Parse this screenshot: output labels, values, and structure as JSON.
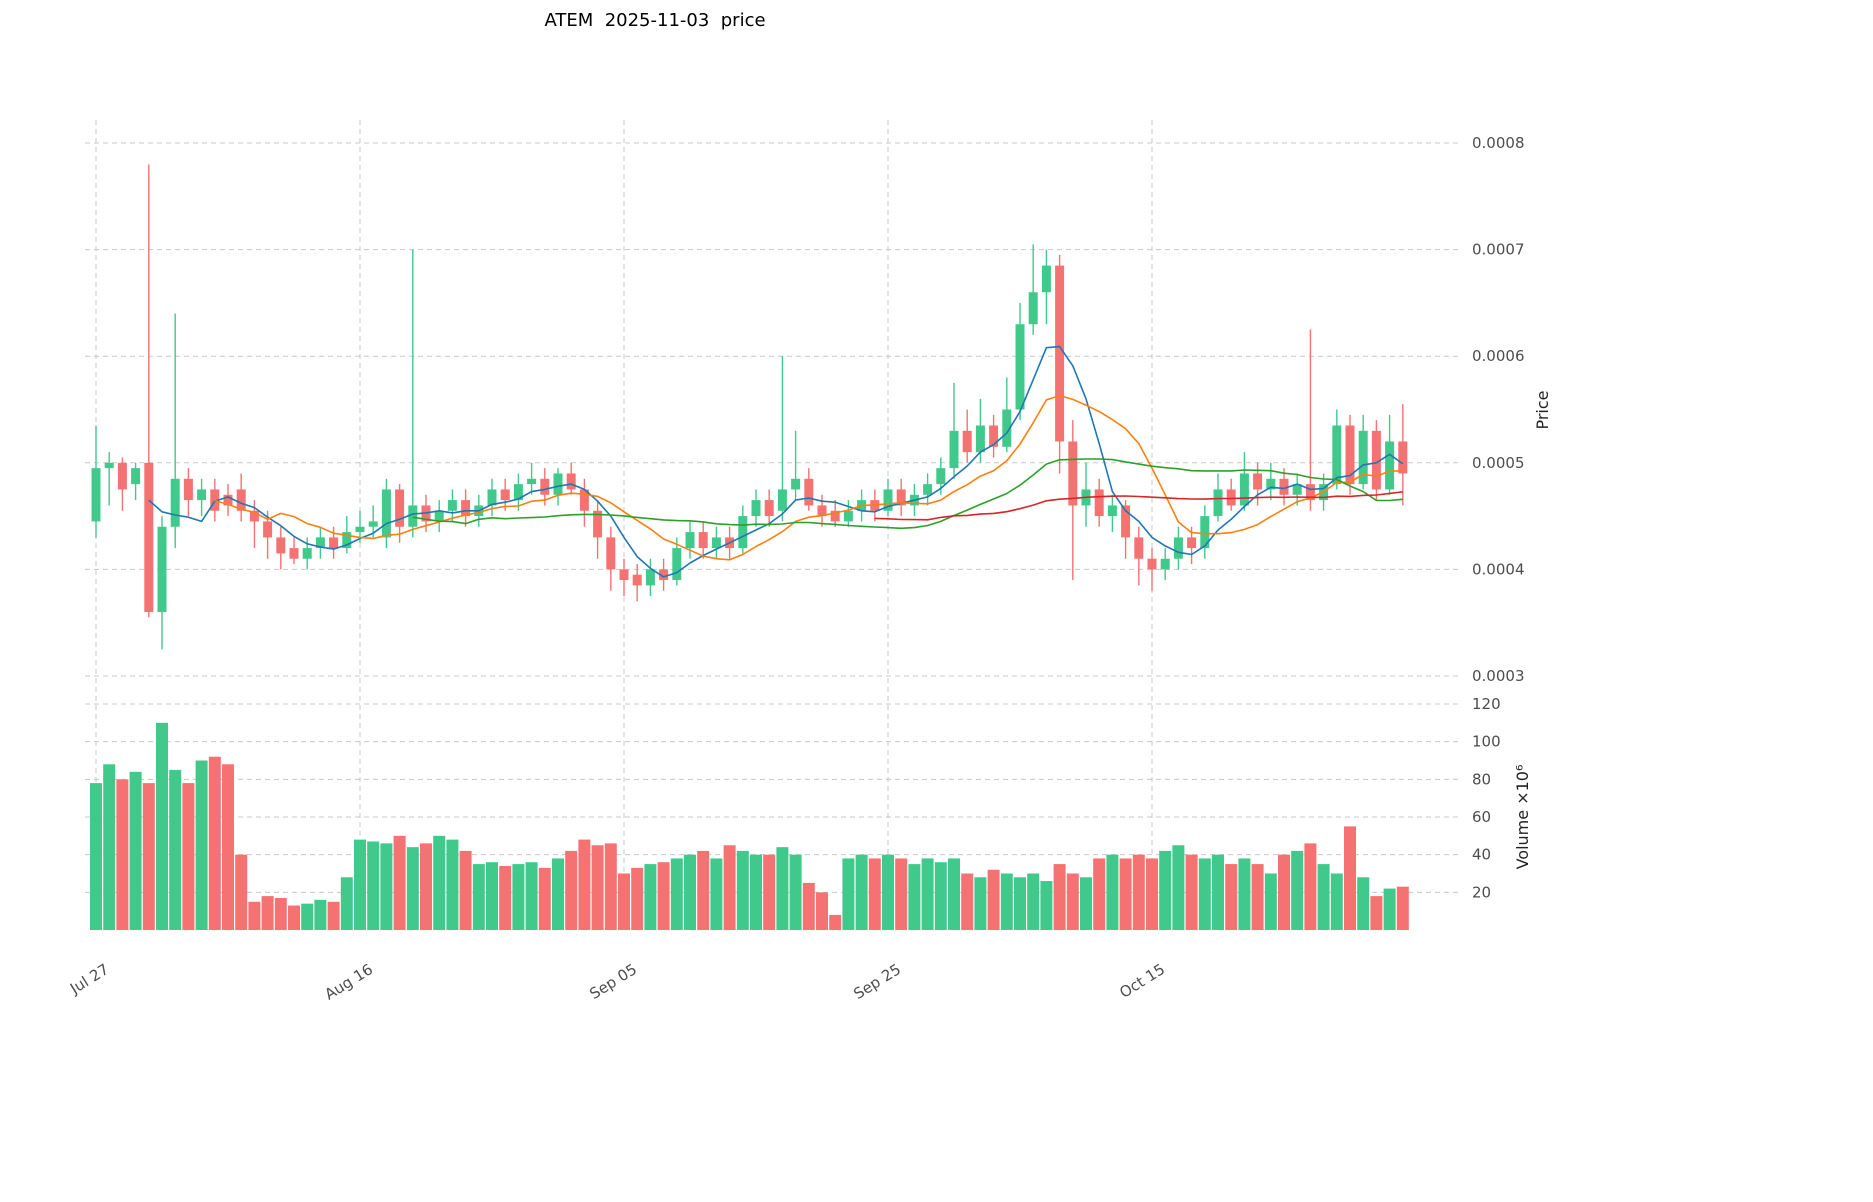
{
  "title": "ATEM  2025-11-03  price",
  "chart_data": {
    "type": "candlestick",
    "symbol": "ATEM",
    "as_of_date": "2025-11-03",
    "start_date": "2025-07-27",
    "end_date": "2025-11-03",
    "price_multiplier": 0.0001,
    "volume_multiplier": 1000000,
    "columns": [
      "open",
      "high",
      "low",
      "close",
      "volume"
    ],
    "ohlcv": [
      [
        4.45,
        5.35,
        4.3,
        4.95,
        78
      ],
      [
        4.95,
        5.1,
        4.6,
        5.0,
        88
      ],
      [
        5.0,
        5.05,
        4.55,
        4.75,
        80
      ],
      [
        4.8,
        5.0,
        4.65,
        4.95,
        84
      ],
      [
        5.0,
        7.8,
        3.55,
        3.6,
        78
      ],
      [
        3.6,
        4.5,
        3.25,
        4.4,
        110
      ],
      [
        4.4,
        6.4,
        4.2,
        4.85,
        85
      ],
      [
        4.85,
        4.95,
        4.5,
        4.65,
        78
      ],
      [
        4.65,
        4.85,
        4.5,
        4.75,
        90
      ],
      [
        4.75,
        4.85,
        4.45,
        4.55,
        92
      ],
      [
        4.7,
        4.8,
        4.5,
        4.6,
        88
      ],
      [
        4.75,
        4.9,
        4.45,
        4.55,
        40
      ],
      [
        4.55,
        4.65,
        4.2,
        4.45,
        15
      ],
      [
        4.45,
        4.55,
        4.1,
        4.3,
        18
      ],
      [
        4.3,
        4.4,
        4.0,
        4.15,
        17
      ],
      [
        4.2,
        4.3,
        4.05,
        4.1,
        13
      ],
      [
        4.1,
        4.3,
        4.0,
        4.2,
        14
      ],
      [
        4.2,
        4.4,
        4.1,
        4.3,
        16
      ],
      [
        4.3,
        4.4,
        4.1,
        4.2,
        15
      ],
      [
        4.2,
        4.5,
        4.15,
        4.35,
        28
      ],
      [
        4.35,
        4.55,
        4.25,
        4.4,
        48
      ],
      [
        4.4,
        4.6,
        4.3,
        4.45,
        47
      ],
      [
        4.3,
        4.85,
        4.2,
        4.75,
        46
      ],
      [
        4.75,
        4.8,
        4.25,
        4.4,
        50
      ],
      [
        4.4,
        7.0,
        4.3,
        4.6,
        44
      ],
      [
        4.6,
        4.7,
        4.35,
        4.45,
        46
      ],
      [
        4.45,
        4.65,
        4.35,
        4.55,
        50
      ],
      [
        4.55,
        4.75,
        4.45,
        4.65,
        48
      ],
      [
        4.65,
        4.75,
        4.4,
        4.5,
        42
      ],
      [
        4.5,
        4.7,
        4.4,
        4.6,
        35
      ],
      [
        4.6,
        4.85,
        4.5,
        4.75,
        36
      ],
      [
        4.75,
        4.85,
        4.55,
        4.65,
        34
      ],
      [
        4.65,
        4.9,
        4.55,
        4.8,
        35
      ],
      [
        4.8,
        5.0,
        4.7,
        4.85,
        36
      ],
      [
        4.85,
        4.95,
        4.6,
        4.7,
        33
      ],
      [
        4.7,
        4.95,
        4.6,
        4.9,
        38
      ],
      [
        4.9,
        5.0,
        4.7,
        4.75,
        42
      ],
      [
        4.75,
        4.85,
        4.4,
        4.55,
        48
      ],
      [
        4.55,
        4.65,
        4.1,
        4.3,
        45
      ],
      [
        4.3,
        4.4,
        3.8,
        4.0,
        46
      ],
      [
        4.0,
        4.1,
        3.75,
        3.9,
        30
      ],
      [
        3.95,
        4.05,
        3.7,
        3.85,
        33
      ],
      [
        3.85,
        4.1,
        3.75,
        4.0,
        35
      ],
      [
        4.0,
        4.1,
        3.8,
        3.9,
        36
      ],
      [
        3.9,
        4.3,
        3.85,
        4.2,
        38
      ],
      [
        4.2,
        4.45,
        4.1,
        4.35,
        40
      ],
      [
        4.35,
        4.45,
        4.1,
        4.2,
        42
      ],
      [
        4.2,
        4.4,
        4.1,
        4.3,
        38
      ],
      [
        4.3,
        4.4,
        4.1,
        4.2,
        45
      ],
      [
        4.2,
        4.6,
        4.15,
        4.5,
        42
      ],
      [
        4.5,
        4.75,
        4.4,
        4.65,
        40
      ],
      [
        4.65,
        4.75,
        4.4,
        4.5,
        40
      ],
      [
        4.55,
        6.0,
        4.45,
        4.75,
        44
      ],
      [
        4.75,
        5.3,
        4.65,
        4.85,
        40
      ],
      [
        4.85,
        4.95,
        4.55,
        4.6,
        25
      ],
      [
        4.6,
        4.7,
        4.4,
        4.5,
        20
      ],
      [
        4.55,
        4.65,
        4.4,
        4.45,
        8
      ],
      [
        4.45,
        4.65,
        4.4,
        4.55,
        38
      ],
      [
        4.55,
        4.75,
        4.45,
        4.65,
        40
      ],
      [
        4.65,
        4.75,
        4.45,
        4.55,
        38
      ],
      [
        4.55,
        4.85,
        4.5,
        4.75,
        40
      ],
      [
        4.75,
        4.85,
        4.5,
        4.6,
        38
      ],
      [
        4.6,
        4.8,
        4.5,
        4.7,
        35
      ],
      [
        4.7,
        4.9,
        4.6,
        4.8,
        38
      ],
      [
        4.8,
        5.05,
        4.7,
        4.95,
        36
      ],
      [
        4.95,
        5.75,
        4.85,
        5.3,
        38
      ],
      [
        5.3,
        5.5,
        5.0,
        5.1,
        30
      ],
      [
        5.1,
        5.6,
        5.0,
        5.35,
        28
      ],
      [
        5.35,
        5.45,
        5.05,
        5.15,
        32
      ],
      [
        5.15,
        5.8,
        5.1,
        5.5,
        30
      ],
      [
        5.5,
        6.5,
        5.4,
        6.3,
        28
      ],
      [
        6.3,
        7.05,
        6.2,
        6.6,
        30
      ],
      [
        6.6,
        7.0,
        6.3,
        6.85,
        26
      ],
      [
        6.85,
        6.95,
        4.9,
        5.2,
        35
      ],
      [
        5.2,
        5.4,
        3.9,
        4.6,
        30
      ],
      [
        4.6,
        5.0,
        4.4,
        4.75,
        28
      ],
      [
        4.75,
        4.85,
        4.4,
        4.5,
        38
      ],
      [
        4.5,
        4.7,
        4.35,
        4.6,
        40
      ],
      [
        4.6,
        4.65,
        4.1,
        4.3,
        38
      ],
      [
        4.3,
        4.4,
        3.85,
        4.1,
        40
      ],
      [
        4.1,
        4.2,
        3.8,
        4.0,
        38
      ],
      [
        4.0,
        4.2,
        3.9,
        4.1,
        42
      ],
      [
        4.1,
        4.4,
        4.0,
        4.3,
        45
      ],
      [
        4.3,
        4.4,
        4.05,
        4.2,
        40
      ],
      [
        4.2,
        4.6,
        4.1,
        4.5,
        38
      ],
      [
        4.5,
        4.9,
        4.45,
        4.75,
        40
      ],
      [
        4.75,
        4.85,
        4.55,
        4.6,
        35
      ],
      [
        4.6,
        5.1,
        4.55,
        4.9,
        38
      ],
      [
        4.9,
        5.0,
        4.6,
        4.75,
        35
      ],
      [
        4.75,
        5.0,
        4.65,
        4.85,
        30
      ],
      [
        4.85,
        4.95,
        4.6,
        4.7,
        40
      ],
      [
        4.7,
        4.9,
        4.6,
        4.8,
        42
      ],
      [
        4.8,
        6.25,
        4.55,
        4.65,
        46
      ],
      [
        4.65,
        4.9,
        4.55,
        4.8,
        35
      ],
      [
        4.8,
        5.5,
        4.75,
        5.35,
        30
      ],
      [
        5.35,
        5.45,
        4.7,
        4.8,
        55
      ],
      [
        4.8,
        5.45,
        4.75,
        5.3,
        28
      ],
      [
        5.3,
        5.4,
        4.65,
        4.75,
        18
      ],
      [
        4.75,
        5.45,
        4.7,
        5.2,
        22
      ],
      [
        5.2,
        5.55,
        4.6,
        4.9,
        23
      ]
    ],
    "moving_averages": [
      {
        "window": 5,
        "color": "#1f77b4"
      },
      {
        "window": 10,
        "color": "#ff7f0e"
      },
      {
        "window": 25,
        "color": "#2ca02c"
      },
      {
        "window": 60,
        "color": "#d62728"
      }
    ],
    "y_axis": {
      "label": "Price",
      "ticks": [
        {
          "value": 3,
          "label": "0.0003"
        },
        {
          "value": 4,
          "label": "0.0004"
        },
        {
          "value": 5,
          "label": "0.0005"
        },
        {
          "value": 6,
          "label": "0.0006"
        },
        {
          "value": 7,
          "label": "0.0007"
        },
        {
          "value": 8,
          "label": "0.0008"
        }
      ]
    },
    "volume_axis": {
      "label": "Volume  ×10⁶",
      "ticks": [
        {
          "value": 20,
          "label": "20"
        },
        {
          "value": 40,
          "label": "40"
        },
        {
          "value": 60,
          "label": "60"
        },
        {
          "value": 80,
          "label": "80"
        },
        {
          "value": 100,
          "label": "100"
        },
        {
          "value": 120,
          "label": "120"
        }
      ]
    },
    "x_ticks": [
      {
        "day": 0,
        "label": "Jul 27"
      },
      {
        "day": 20,
        "label": "Aug 16"
      },
      {
        "day": 40,
        "label": "Sep 05"
      },
      {
        "day": 60,
        "label": "Sep 25"
      },
      {
        "day": 80,
        "label": "Oct 15"
      }
    ],
    "colors": {
      "up": "#41c98c",
      "down": "#f47272",
      "grid": "#c8c8c8",
      "tick_text": "#4d4d4d",
      "title_text": "#000000"
    },
    "legend_position": "none",
    "grid": "dashed"
  }
}
